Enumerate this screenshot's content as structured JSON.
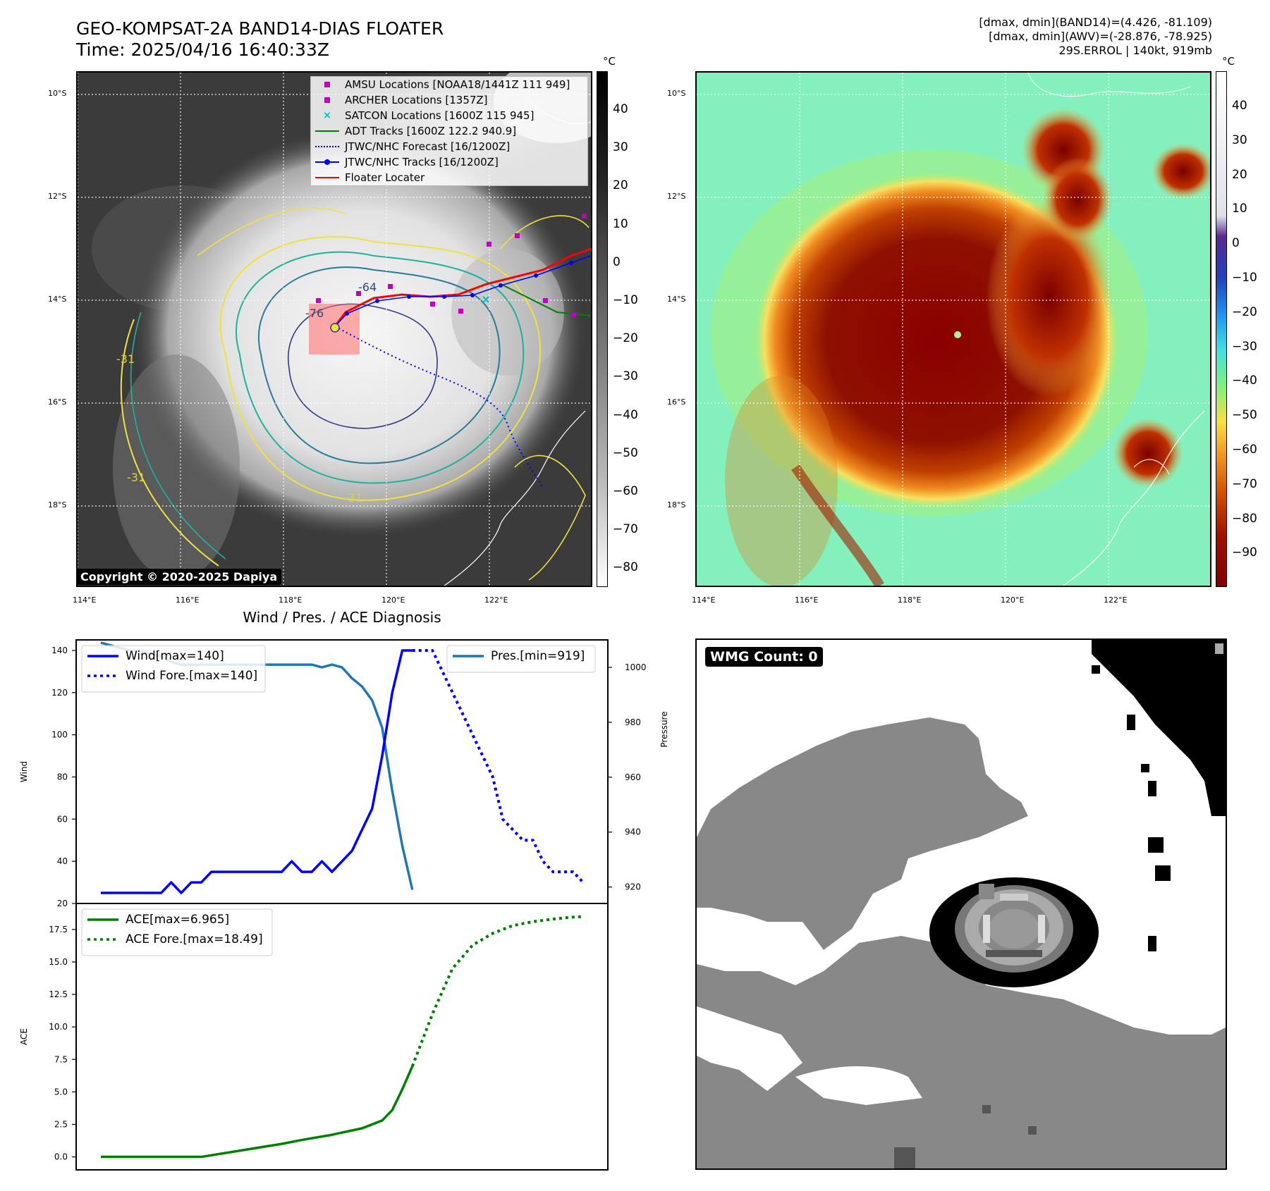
{
  "header": {
    "title_line1": "GEO-KOMPSAT-2A BAND14-DIAS FLOATER",
    "title_line2": "Time: 2025/04/16 16:40:33Z",
    "info_line1": "[dmax, dmin](BAND14)=(4.426, -81.109)",
    "info_line2": "[dmax, dmin](AWV)=(-28.876, -78.925)",
    "info_line3": "29S.ERROL | 140kt, 919mb"
  },
  "map": {
    "lat_labels": [
      "10°S",
      "12°S",
      "14°S",
      "16°S",
      "18°S"
    ],
    "lon_labels": [
      "114°E",
      "116°E",
      "118°E",
      "120°E",
      "122°E"
    ],
    "copyright": "Copyright © 2020-2025 Dapiya",
    "contour_labels": [
      "-64",
      "-76",
      "-31",
      "-31",
      "-31"
    ],
    "legend": [
      {
        "label": "AMSU Locations [NOAA18/1441Z 111 949]",
        "marker": "square",
        "color": "#bf00bf"
      },
      {
        "label": "ARCHER Locations [1357Z]",
        "marker": "square",
        "color": "#bf00bf"
      },
      {
        "label": "SATCON Locations [1600Z 115 945]",
        "marker": "x",
        "color": "#00bfbf"
      },
      {
        "label": "ADT Tracks [1600Z 122.2 940.9]",
        "marker": "line",
        "color": "#008000"
      },
      {
        "label": "JTWC/NHC Forecast [16/1200Z]",
        "marker": "dotted",
        "color": "#0000ff"
      },
      {
        "label": "JTWC/NHC Tracks [16/1200Z]",
        "marker": "line-dot",
        "color": "#0000ff"
      },
      {
        "label": "Floater Locater",
        "marker": "line",
        "color": "#ff0000"
      }
    ]
  },
  "colorbar_gray": {
    "unit": "°C",
    "ticks": [
      "40",
      "30",
      "20",
      "10",
      "0",
      "−10",
      "−20",
      "−30",
      "−40",
      "−50",
      "−60",
      "−70",
      "−80"
    ]
  },
  "colorbar_color": {
    "unit": "°C",
    "ticks": [
      "40",
      "30",
      "20",
      "10",
      "0",
      "−10",
      "−20",
      "−30",
      "−40",
      "−50",
      "−60",
      "−70",
      "−80",
      "−90"
    ]
  },
  "diagnosis_title": "Wind / Pres. / ACE Diagnosis",
  "wmg": {
    "label": "WMG Count: 0"
  },
  "chart_data": [
    {
      "type": "line",
      "title": "Wind / Pres. / ACE Diagnosis",
      "ylabel": "Wind",
      "ylim": [
        20,
        145
      ],
      "yticks": [
        20,
        40,
        60,
        80,
        100,
        120,
        140
      ],
      "xlim": [
        0,
        48
      ],
      "series": [
        {
          "name": "Wind[max=140]",
          "style": "solid",
          "color": "#0000ff",
          "x": [
            0,
            1,
            2,
            3,
            4,
            5,
            6,
            7,
            8,
            9,
            10,
            11,
            12,
            13,
            14,
            15,
            16,
            17,
            18,
            19,
            20,
            21,
            22,
            23,
            24,
            25,
            26,
            27,
            28,
            29,
            30,
            31
          ],
          "values": [
            25,
            25,
            25,
            25,
            25,
            25,
            25,
            30,
            25,
            30,
            30,
            35,
            35,
            35,
            35,
            35,
            35,
            35,
            35,
            40,
            35,
            35,
            40,
            35,
            40,
            45,
            55,
            65,
            90,
            120,
            140,
            140
          ]
        },
        {
          "name": "Wind Fore.[max=140]",
          "style": "dotted",
          "color": "#0000ff",
          "x": [
            31,
            33,
            35,
            37,
            39,
            40,
            42,
            43,
            44,
            45,
            46,
            47,
            48
          ],
          "values": [
            140,
            140,
            120,
            100,
            80,
            60,
            50,
            50,
            40,
            35,
            35,
            35,
            30
          ]
        }
      ]
    },
    {
      "type": "line",
      "ylabel": "Pressure",
      "ylim": [
        914,
        1010
      ],
      "yticks": [
        920,
        940,
        960,
        980,
        1000
      ],
      "xlim": [
        0,
        48
      ],
      "series": [
        {
          "name": "Pres.[min=919]",
          "style": "solid",
          "color": "#1f77b4",
          "x": [
            0,
            1,
            2,
            3,
            4,
            5,
            6,
            7,
            8,
            9,
            10,
            11,
            12,
            13,
            14,
            15,
            16,
            17,
            18,
            19,
            20,
            21,
            22,
            23,
            24,
            25,
            26,
            27,
            28,
            29,
            30,
            31
          ],
          "values": [
            1009,
            1008,
            1007,
            1006,
            1006,
            1005,
            1004,
            1002,
            1001,
            1001,
            1001,
            1001,
            1001,
            1001,
            1001,
            1001,
            1001,
            1001,
            1001,
            1001,
            1001,
            1001,
            1000,
            1001,
            1000,
            996,
            993,
            988,
            978,
            955,
            935,
            919
          ]
        }
      ]
    },
    {
      "type": "line",
      "ylabel": "ACE",
      "ylim": [
        -1,
        19.5
      ],
      "yticks": [
        0.0,
        2.5,
        5.0,
        7.5,
        10.0,
        12.5,
        15.0,
        17.5
      ],
      "xlim": [
        0,
        48
      ],
      "series": [
        {
          "name": "ACE[max=6.965]",
          "style": "solid",
          "color": "#008000",
          "x": [
            0,
            5,
            10,
            14,
            18,
            20,
            23,
            26,
            28,
            29,
            30,
            31
          ],
          "values": [
            0,
            0,
            0,
            0.5,
            1.0,
            1.3,
            1.7,
            2.2,
            2.8,
            3.6,
            5.2,
            6.965
          ]
        },
        {
          "name": "ACE Fore.[max=18.49]",
          "style": "dotted",
          "color": "#008000",
          "x": [
            31,
            33,
            35,
            37,
            39,
            41,
            43,
            45,
            47,
            48
          ],
          "values": [
            6.965,
            11.0,
            14.5,
            16.3,
            17.2,
            17.8,
            18.1,
            18.3,
            18.45,
            18.49
          ]
        }
      ]
    }
  ]
}
